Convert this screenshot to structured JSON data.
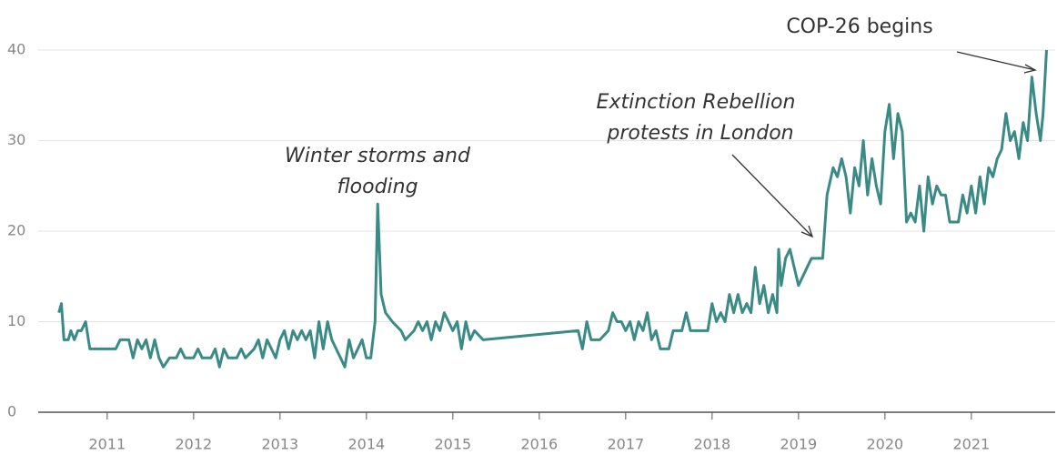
{
  "chart_data": {
    "type": "line",
    "annotations": [
      [
        "Winter storms and",
        "flooding"
      ],
      [
        "Extinction Rebellion",
        "protests in London"
      ],
      [
        "COP-26 begins"
      ]
    ],
    "x": [
      2010.44,
      2010.47,
      2010.5,
      2010.55,
      2010.58,
      2010.62,
      2010.66,
      2010.7,
      2010.75,
      2010.8,
      2010.9,
      2011.0,
      2011.1,
      2011.15,
      2011.25,
      2011.3,
      2011.35,
      2011.4,
      2011.45,
      2011.5,
      2011.55,
      2011.6,
      2011.65,
      2011.72,
      2011.8,
      2011.85,
      2011.9,
      2012.0,
      2012.05,
      2012.1,
      2012.2,
      2012.25,
      2012.3,
      2012.35,
      2012.4,
      2012.5,
      2012.55,
      2012.6,
      2012.7,
      2012.75,
      2012.8,
      2012.85,
      2012.9,
      2012.95,
      2013.0,
      2013.05,
      2013.1,
      2013.15,
      2013.2,
      2013.25,
      2013.3,
      2013.35,
      2013.4,
      2013.45,
      2013.5,
      2013.55,
      2013.6,
      2013.65,
      2013.7,
      2013.75,
      2013.8,
      2013.85,
      2013.9,
      2013.95,
      2014.0,
      2014.05,
      2014.1,
      2014.13,
      2014.17,
      2014.22,
      2014.3,
      2014.4,
      2014.45,
      2014.55,
      2014.6,
      2014.65,
      2014.7,
      2014.75,
      2014.8,
      2014.85,
      2014.9,
      2014.95,
      2015.0,
      2015.05,
      2015.1,
      2015.15,
      2015.2,
      2015.25,
      2015.35,
      2016.45,
      2016.5,
      2016.55,
      2016.6,
      2016.7,
      2016.8,
      2016.85,
      2016.9,
      2016.95,
      2017.0,
      2017.05,
      2017.1,
      2017.15,
      2017.2,
      2017.25,
      2017.3,
      2017.35,
      2017.4,
      2017.5,
      2017.55,
      2017.65,
      2017.7,
      2017.75,
      2017.85,
      2017.95,
      2018.0,
      2018.05,
      2018.1,
      2018.15,
      2018.2,
      2018.25,
      2018.3,
      2018.35,
      2018.4,
      2018.45,
      2018.5,
      2018.55,
      2018.6,
      2018.65,
      2018.7,
      2018.75,
      2018.77,
      2018.8,
      2018.85,
      2018.9,
      2019.0,
      2019.1,
      2019.15,
      2019.28,
      2019.33,
      2019.4,
      2019.45,
      2019.5,
      2019.55,
      2019.6,
      2019.65,
      2019.7,
      2019.75,
      2019.8,
      2019.85,
      2019.9,
      2019.95,
      2020.0,
      2020.05,
      2020.1,
      2020.15,
      2020.2,
      2020.25,
      2020.3,
      2020.35,
      2020.4,
      2020.45,
      2020.5,
      2020.55,
      2020.6,
      2020.65,
      2020.7,
      2020.75,
      2020.85,
      2020.9,
      2020.95,
      2021.0,
      2021.05,
      2021.1,
      2021.15,
      2021.2,
      2021.25,
      2021.3,
      2021.35,
      2021.4,
      2021.45,
      2021.5,
      2021.55,
      2021.6,
      2021.65,
      2021.7,
      2021.75,
      2021.8,
      2021.83,
      2021.87
    ],
    "series": [
      {
        "color": "#3a8a85",
        "values": [
          11,
          12,
          8,
          8,
          9,
          8,
          9,
          9,
          10,
          7,
          7,
          7,
          7,
          8,
          8,
          6,
          8,
          7,
          8,
          6,
          8,
          6,
          5,
          6,
          6,
          7,
          6,
          6,
          7,
          6,
          6,
          7,
          5,
          7,
          6,
          6,
          7,
          6,
          7,
          8,
          6,
          8,
          7,
          6,
          8,
          9,
          7,
          9,
          8,
          9,
          8,
          9,
          6,
          10,
          7,
          10,
          8,
          7,
          6,
          5,
          8,
          6,
          7,
          8,
          6,
          6,
          10,
          23,
          13,
          11,
          10,
          9,
          8,
          9,
          10,
          9,
          10,
          8,
          10,
          9,
          11,
          10,
          9,
          10,
          7,
          10,
          8,
          9,
          8,
          9,
          7,
          10,
          8,
          8,
          9,
          11,
          10,
          10,
          9,
          10,
          8,
          10,
          9,
          11,
          8,
          9,
          7,
          7,
          9,
          9,
          11,
          9,
          9,
          9,
          12,
          10,
          11,
          10,
          13,
          11,
          13,
          11,
          12,
          11,
          16,
          12,
          14,
          11,
          13,
          11,
          18,
          14,
          17,
          18,
          14,
          16,
          17,
          17,
          24,
          27,
          26,
          28,
          26,
          22,
          27,
          25,
          30,
          24,
          28,
          25,
          23,
          31,
          34,
          28,
          33,
          31,
          21,
          22,
          21,
          25,
          20,
          26,
          23,
          25,
          24,
          24,
          21,
          21,
          24,
          22,
          25,
          22,
          26,
          23,
          27,
          26,
          28,
          29,
          33,
          30,
          31,
          28,
          32,
          30,
          37,
          33,
          30,
          33,
          40
        ]
      }
    ],
    "xlim": [
      2009.97,
      2021.97
    ],
    "xticks": [
      2011,
      2012,
      2013,
      2014,
      2015,
      2016,
      2017,
      2018,
      2019,
      2020,
      2021
    ],
    "ylim": [
      0,
      40
    ],
    "yticks": [
      0,
      10,
      20,
      30,
      40
    ],
    "grid": true
  }
}
